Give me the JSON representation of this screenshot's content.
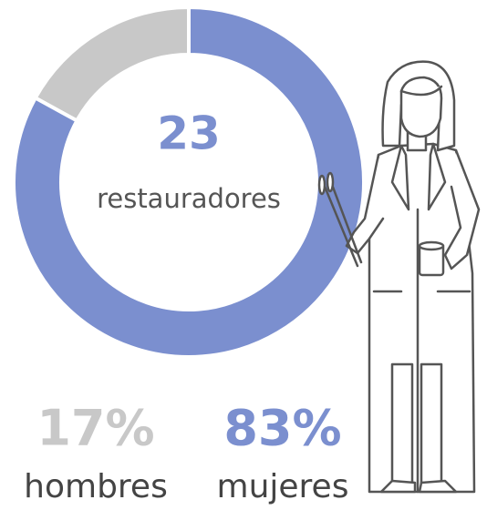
{
  "chart_data": {
    "type": "pie",
    "donut": true,
    "categories": [
      "hombres",
      "mujeres"
    ],
    "values": [
      17,
      83
    ],
    "value_labels": [
      "17%",
      "83%"
    ],
    "colors": [
      "#c8c8c8",
      "#7b8fcf"
    ],
    "total": 23,
    "total_label": "restauradores"
  }
}
